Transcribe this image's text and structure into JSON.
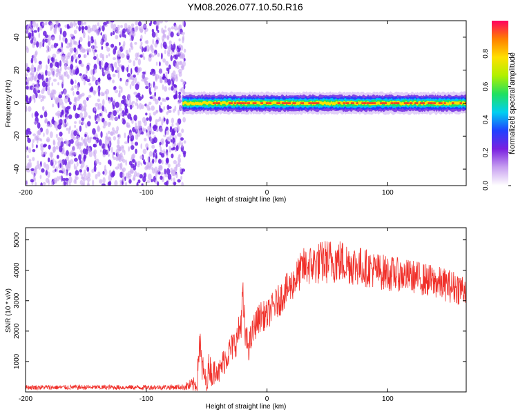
{
  "title": "YM08.2026.077.10.50.R16",
  "colors": {
    "signal": "#f0302a",
    "noise_dark": "#6a1fe0",
    "noise_light": "#c9a8f2",
    "axis": "#000000"
  },
  "colorbar": {
    "label": "Normalized spectral amplitude",
    "ticks": [
      "0.0",
      "0.2",
      "0.4",
      "0.6",
      "0.8"
    ],
    "tick_values": [
      0.0,
      0.2,
      0.4,
      0.6,
      0.8
    ],
    "range": [
      0.0,
      1.0
    ],
    "stops": [
      "#ffffff",
      "#c8a0f0",
      "#7a20e0",
      "#2040ff",
      "#00d0f0",
      "#20e060",
      "#b0f000",
      "#ffe000",
      "#ff8000",
      "#ff0060"
    ]
  },
  "chart_data": [
    {
      "type": "heatmap",
      "xlabel": "Height of straight line (km)",
      "ylabel": "Frequency (Hz)",
      "xlim": [
        -200,
        165
      ],
      "ylim": [
        -50,
        50
      ],
      "xticks": [
        -200,
        -100,
        0,
        100
      ],
      "xtick_labels": [
        "-200",
        "-100",
        "0",
        "100"
      ],
      "yticks": [
        -40,
        -20,
        0,
        20,
        40
      ],
      "ytick_labels": [
        "-40",
        "-20",
        "0",
        "20",
        "40"
      ],
      "noise_region_x": [
        -200,
        -68
      ],
      "signal_band": {
        "start_x": -70,
        "end_x": 165,
        "center_freq": 0,
        "half_width": 3
      }
    },
    {
      "type": "line",
      "xlabel": "Height of straight line (km)",
      "ylabel": "SNR (10 * v/v)",
      "xlim": [
        -200,
        165
      ],
      "ylim": [
        0,
        5400
      ],
      "xticks": [
        -200,
        -100,
        0,
        100
      ],
      "xtick_labels": [
        "-200",
        "-100",
        "0",
        "100"
      ],
      "yticks": [
        1000,
        2000,
        3000,
        4000,
        5000
      ],
      "ytick_labels": [
        "1000",
        "2000",
        "3000",
        "4000",
        "5000"
      ],
      "series": [
        {
          "name": "SNR",
          "x": [
            -200,
            -150,
            -100,
            -70,
            -58,
            -56,
            -54,
            -52,
            -50,
            -48,
            -45,
            -42,
            -40,
            -35,
            -30,
            -25,
            -22,
            -20,
            -18,
            -15,
            -10,
            -5,
            0,
            5,
            10,
            15,
            20,
            25,
            30,
            40,
            50,
            60,
            70,
            80,
            90,
            100,
            110,
            120,
            130,
            140,
            150,
            160,
            165
          ],
          "y": [
            150,
            150,
            150,
            160,
            250,
            1700,
            800,
            600,
            200,
            900,
            500,
            900,
            600,
            1100,
            1400,
            1700,
            2200,
            3000,
            1800,
            1500,
            2200,
            2500,
            2500,
            2800,
            3000,
            3300,
            3500,
            3800,
            4100,
            4200,
            4300,
            4300,
            4200,
            4100,
            4000,
            3900,
            3850,
            3800,
            3700,
            3600,
            3500,
            3400,
            3400
          ],
          "spread": [
            80,
            80,
            80,
            90,
            300,
            700,
            600,
            400,
            300,
            500,
            400,
            500,
            400,
            500,
            500,
            500,
            600,
            800,
            500,
            500,
            500,
            500,
            500,
            500,
            550,
            550,
            550,
            600,
            650,
            700,
            750,
            750,
            700,
            650,
            600,
            600,
            550,
            550,
            550,
            550,
            550,
            550,
            550
          ]
        }
      ]
    }
  ]
}
